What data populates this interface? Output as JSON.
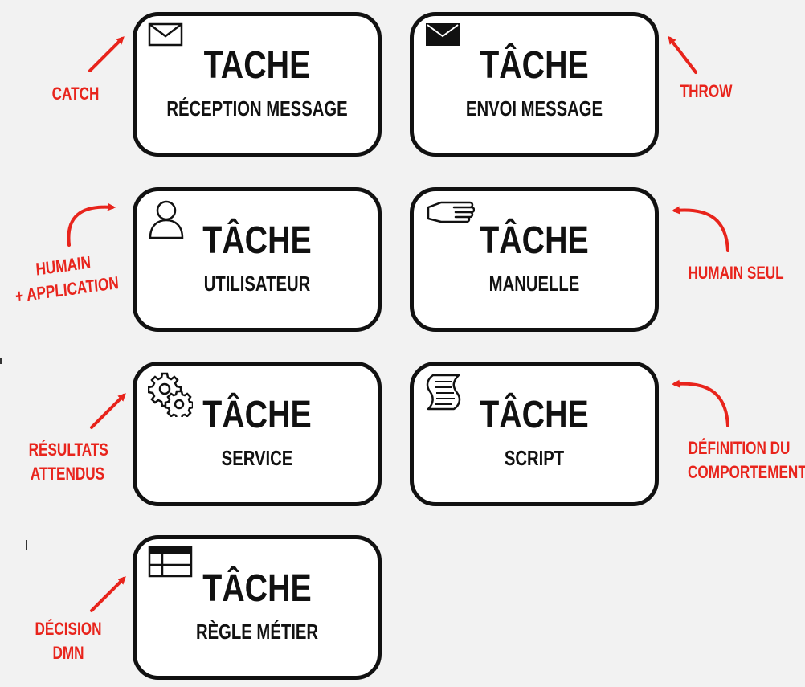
{
  "tasks": [
    {
      "id": "reception",
      "title": "TACHE",
      "subtitle": "RÉCEPTION MESSAGE",
      "icon": "envelope-outline-icon"
    },
    {
      "id": "envoi",
      "title": "TÂCHE",
      "subtitle": "ENVOI MESSAGE",
      "icon": "envelope-filled-icon"
    },
    {
      "id": "utilisateur",
      "title": "TÂCHE",
      "subtitle": "UTILISATEUR",
      "icon": "user-icon"
    },
    {
      "id": "manuelle",
      "title": "TÂCHE",
      "subtitle": "MANUELLE",
      "icon": "hand-icon"
    },
    {
      "id": "service",
      "title": "TÂCHE",
      "subtitle": "SERVICE",
      "icon": "gears-icon"
    },
    {
      "id": "script",
      "title": "TÂCHE",
      "subtitle": "SCRIPT",
      "icon": "script-scroll-icon"
    },
    {
      "id": "regle",
      "title": "TÂCHE",
      "subtitle": "RÈGLE MÉTIER",
      "icon": "table-icon"
    }
  ],
  "annotations": {
    "catch": {
      "line1": "CATCH"
    },
    "throw": {
      "line1": "THROW"
    },
    "humain_application": {
      "line1": "HUMAIN",
      "line2": "+ APPLICATION"
    },
    "humain_seul": {
      "line1": "HUMAIN SEUL"
    },
    "resultats": {
      "line1": "RÉSULTATS",
      "line2": "ATTENDUS"
    },
    "definition": {
      "line1": "DÉFINITION DU",
      "line2": "COMPORTEMENT"
    },
    "decision": {
      "line1": "DÉCISION",
      "line2": "DMN"
    }
  },
  "colors": {
    "annotation": "#e8241c",
    "outline": "#111111",
    "background": "#f2f2f2"
  }
}
